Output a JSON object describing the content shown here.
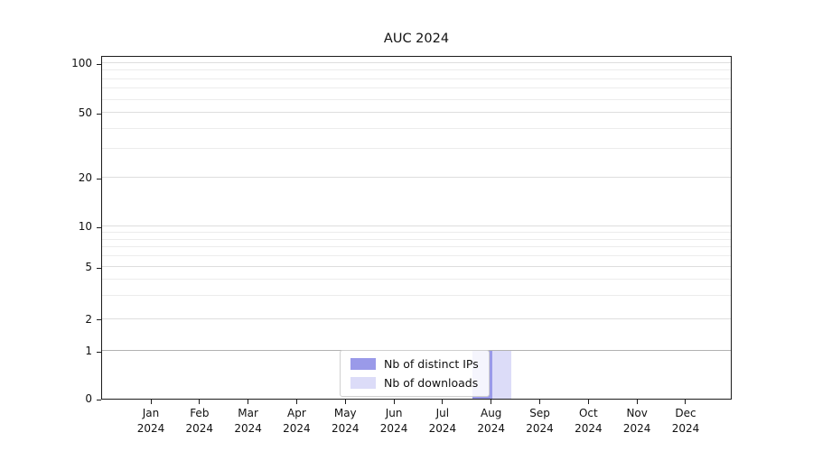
{
  "chart_data": {
    "type": "bar",
    "title": "AUC 2024",
    "categories": [
      "Jan 2024",
      "Feb 2024",
      "Mar 2024",
      "Apr 2024",
      "May 2024",
      "Jun 2024",
      "Jul 2024",
      "Aug 2024",
      "Sep 2024",
      "Oct 2024",
      "Nov 2024",
      "Dec 2024"
    ],
    "series": [
      {
        "name": "Nb of distinct IPs",
        "color": "#9a9ae9",
        "values": [
          0,
          0,
          0,
          0,
          0,
          0,
          0,
          1,
          0,
          0,
          0,
          0
        ]
      },
      {
        "name": "Nb of downloads",
        "color": "#dcdcf8",
        "values": [
          0,
          0,
          0,
          0,
          0,
          0,
          0,
          1,
          0,
          0,
          0,
          0
        ]
      }
    ],
    "yscale": "symlog",
    "y_ticks": [
      0,
      1,
      2,
      5,
      10,
      20,
      50,
      100
    ],
    "ylim": [
      0,
      110
    ],
    "xlabel": "",
    "ylabel": "",
    "grid": true,
    "legend_position": "lower center inside"
  }
}
